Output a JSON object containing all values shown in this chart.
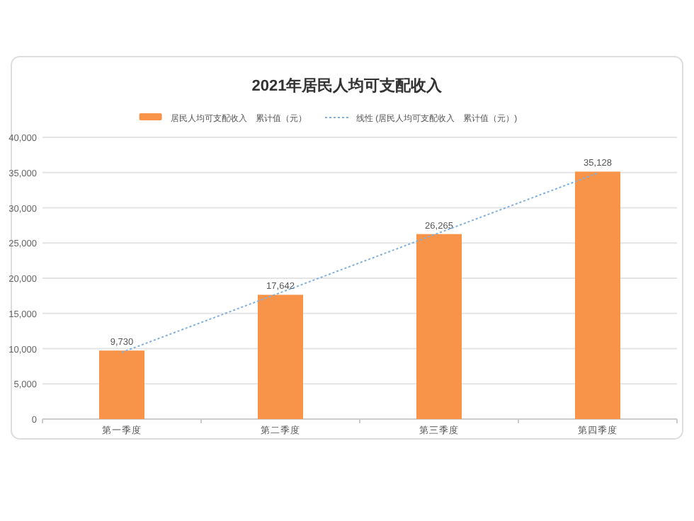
{
  "chart_data": {
    "type": "bar",
    "title": "2021年居民人均可支配收入",
    "categories": [
      "第一季度",
      "第二季度",
      "第三季度",
      "第四季度"
    ],
    "series": [
      {
        "name": "居民人均可支配收入　累计值（元）",
        "color": "#f8934a",
        "values": [
          9730,
          17642,
          26265,
          35128
        ]
      },
      {
        "name": "线性 (居民人均可支配收入　累计值（元）)",
        "type": "line",
        "color": "#7fb0dc",
        "line_style": "dotted",
        "x": [
          "第一季度",
          "第四季度"
        ],
        "values": [
          9469,
          34914
        ]
      }
    ],
    "ylim": [
      0,
      40000
    ],
    "yticks": [
      {
        "value": 0,
        "label": "0"
      },
      {
        "value": 5000,
        "label": "5,000"
      },
      {
        "value": 10000,
        "label": "10,000"
      },
      {
        "value": 15000,
        "label": "15,000"
      },
      {
        "value": 20000,
        "label": "20,000"
      },
      {
        "value": 25000,
        "label": "25,000"
      },
      {
        "value": 30000,
        "label": "30,000"
      },
      {
        "value": 35000,
        "label": "35,000"
      },
      {
        "value": 40000,
        "label": "40,000"
      }
    ],
    "grid": "y",
    "legend": "top",
    "value_labels": [
      "9,730",
      "17,642",
      "26,265",
      "35,128"
    ]
  }
}
